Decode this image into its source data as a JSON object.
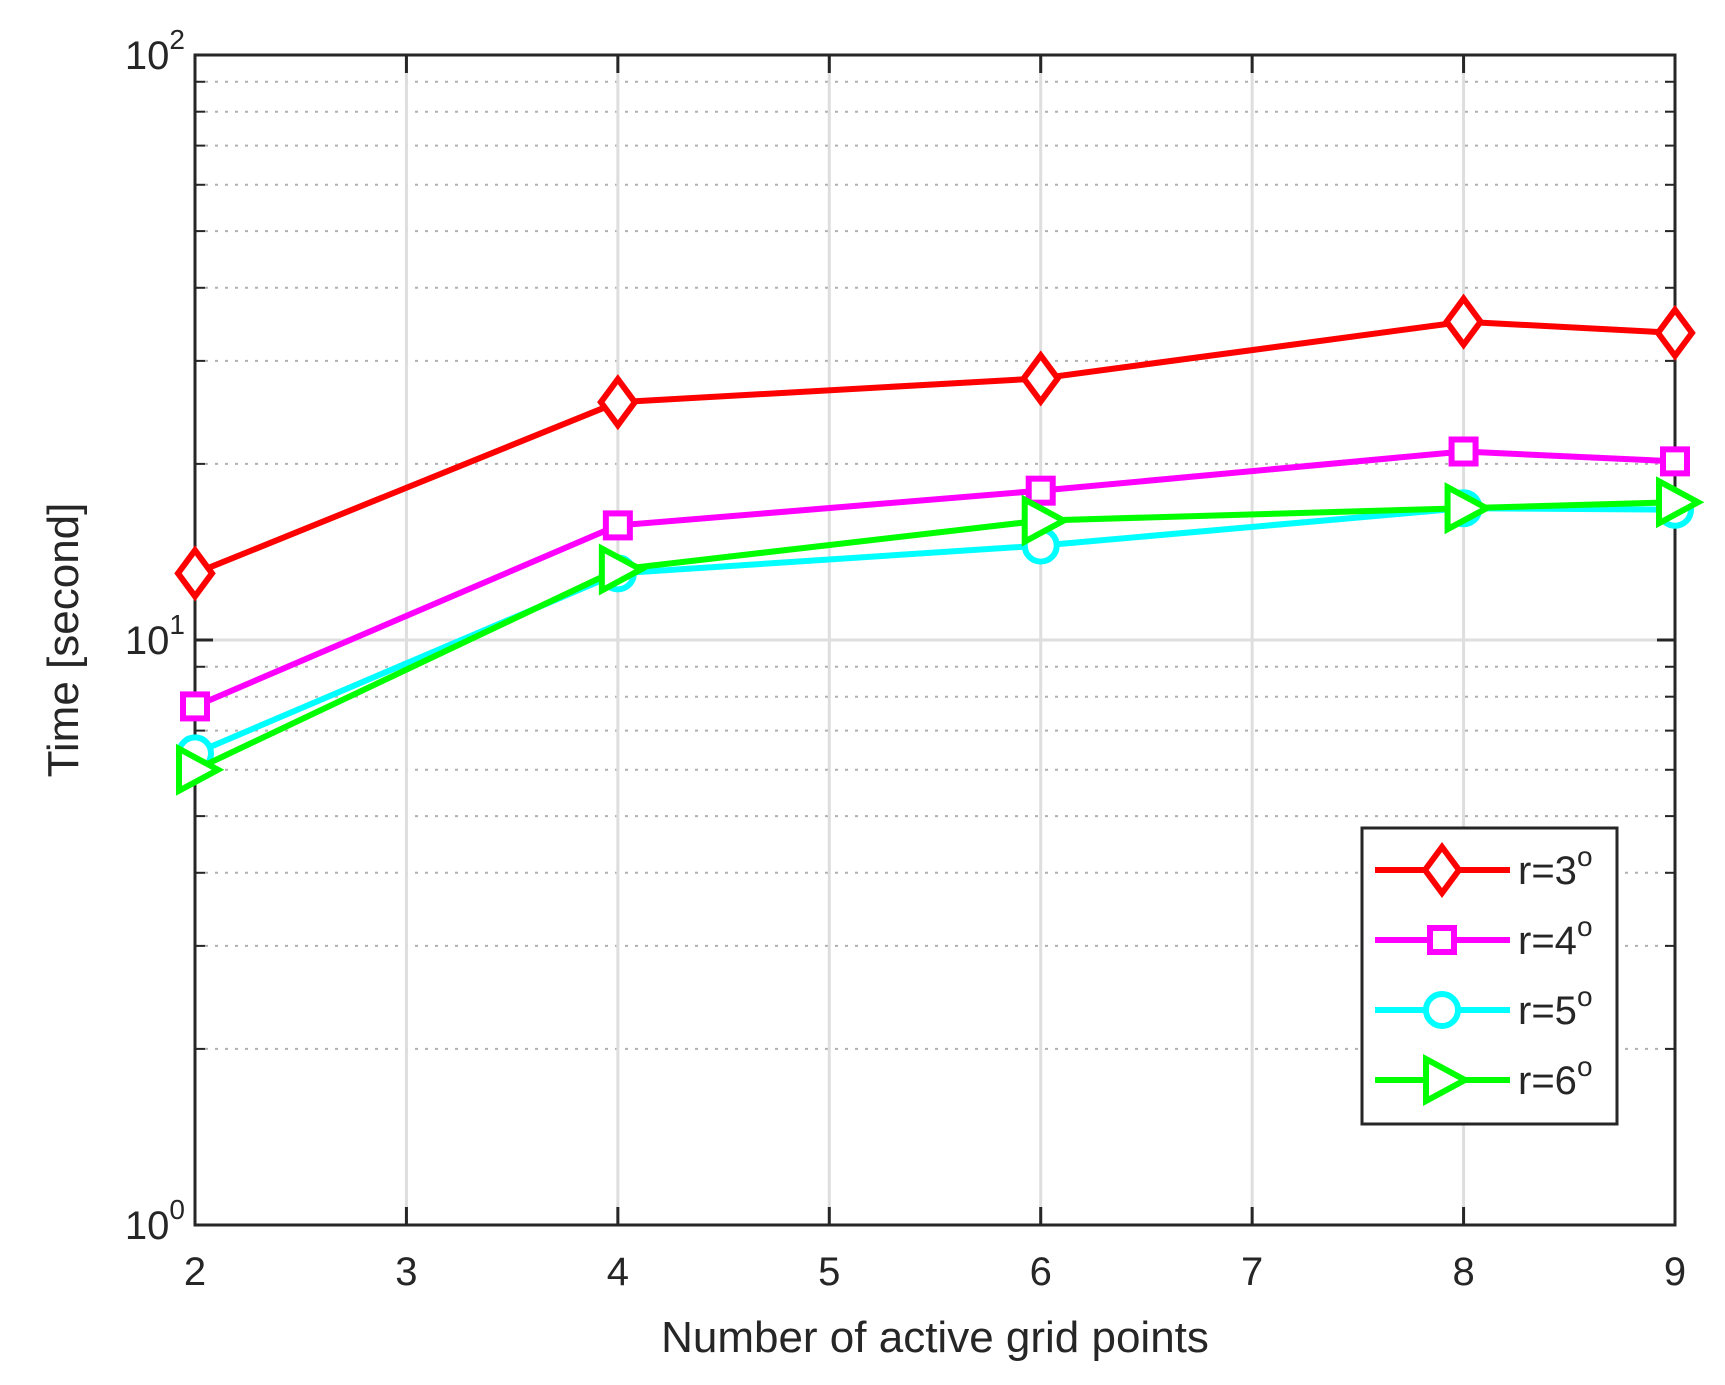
{
  "chart_data": {
    "type": "line",
    "xlabel": "Number of active grid points",
    "ylabel": "Time [second]",
    "xlim": [
      2,
      9
    ],
    "ylim": [
      1,
      100
    ],
    "yscale": "log",
    "grid": true,
    "legend_position": "bottom-right",
    "x_ticks": [
      "2",
      "3",
      "4",
      "5",
      "6",
      "7",
      "8",
      "9"
    ],
    "y_ticks": [
      {
        "base": "10",
        "exp": "0",
        "value": 1
      },
      {
        "base": "10",
        "exp": "1",
        "value": 10
      },
      {
        "base": "10",
        "exp": "2",
        "value": 100
      }
    ],
    "x": [
      2,
      4,
      6,
      8,
      9
    ],
    "series": [
      {
        "name": "r=3",
        "degree": "o",
        "color": "#ff0000",
        "marker": "diamond",
        "values": [
          13.0,
          25.5,
          28.0,
          35.0,
          33.5
        ]
      },
      {
        "name": "r=4",
        "degree": "o",
        "color": "#ff00ff",
        "marker": "square",
        "values": [
          7.7,
          15.7,
          18.0,
          21.0,
          20.2
        ]
      },
      {
        "name": "r=5",
        "degree": "o",
        "color": "#00ffff",
        "marker": "circle",
        "values": [
          6.4,
          13.0,
          14.5,
          16.8,
          16.7
        ]
      },
      {
        "name": "r=6",
        "degree": "o",
        "color": "#00ff00",
        "marker": "triangle-right",
        "values": [
          6.0,
          13.2,
          16.0,
          16.8,
          17.2
        ]
      }
    ]
  }
}
